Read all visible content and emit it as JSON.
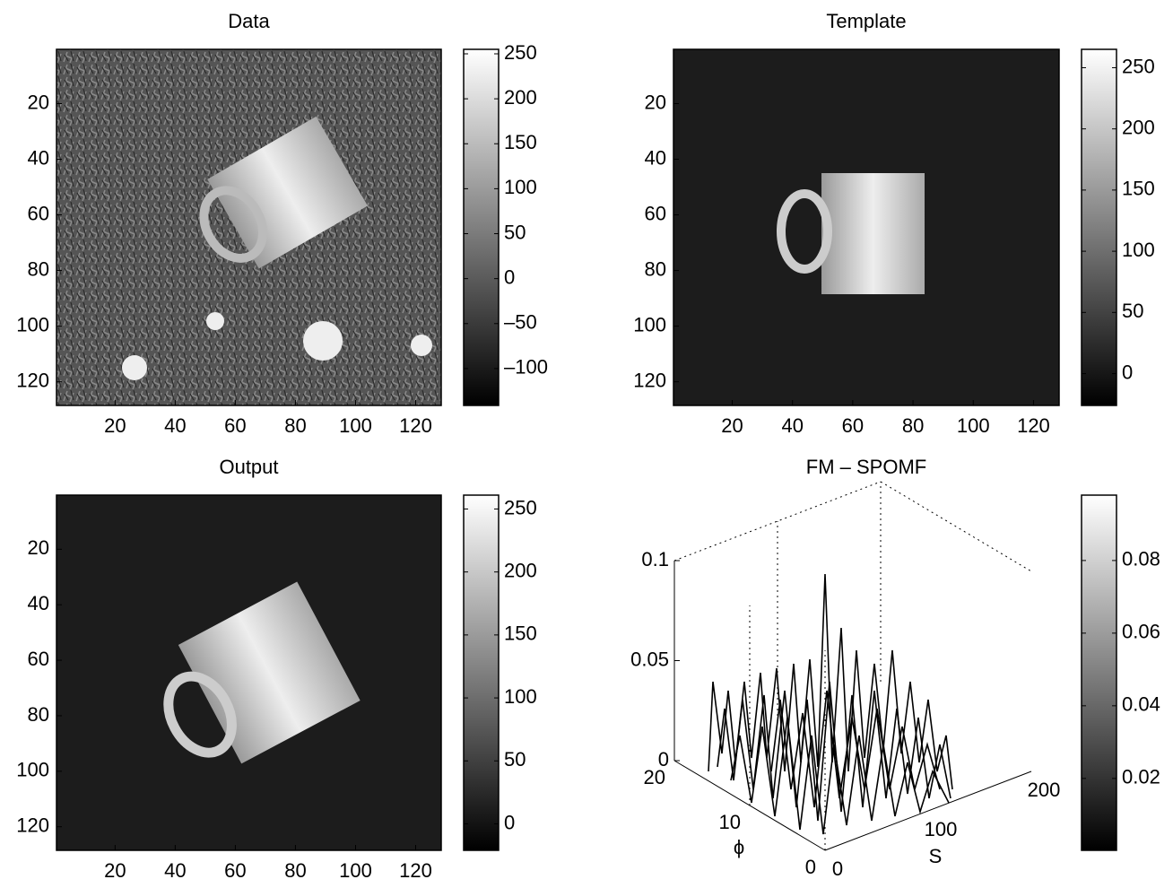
{
  "chart_data": [
    {
      "type": "image",
      "title": "Data",
      "xlim": [
        0.5,
        128.5
      ],
      "ylim": [
        0.5,
        128.5
      ],
      "xticks": [
        20,
        40,
        60,
        80,
        100,
        120
      ],
      "yticks": [
        20,
        40,
        60,
        80,
        100,
        120
      ],
      "colormap": "gray",
      "colorbar": {
        "clim": [
          -141,
          255
        ],
        "ticks": [
          250,
          200,
          150,
          100,
          50,
          0,
          {
            "value": -50,
            "label": "–50"
          },
          {
            "value": -100,
            "label": "–100"
          }
        ]
      }
    },
    {
      "type": "image",
      "title": "Template",
      "xlim": [
        0.5,
        128.5
      ],
      "ylim": [
        0.5,
        128.5
      ],
      "xticks": [
        20,
        40,
        60,
        80,
        100,
        120
      ],
      "yticks": [
        20,
        40,
        60,
        80,
        100,
        120
      ],
      "colormap": "gray",
      "colorbar": {
        "clim": [
          -26,
          265
        ],
        "ticks": [
          250,
          200,
          150,
          100,
          50,
          0
        ]
      }
    },
    {
      "type": "image",
      "title": "Output",
      "xlim": [
        0.5,
        128.5
      ],
      "ylim": [
        0.5,
        128.5
      ],
      "xticks": [
        20,
        40,
        60,
        80,
        100,
        120
      ],
      "yticks": [
        20,
        40,
        60,
        80,
        100,
        120
      ],
      "colormap": "gray",
      "colorbar": {
        "clim": [
          -21,
          261
        ],
        "ticks": [
          250,
          200,
          150,
          100,
          50,
          0
        ]
      }
    },
    {
      "type": "surface",
      "title": "FM – SPOMF",
      "xlabel": "S",
      "ylabel": "ϕ",
      "xlim": [
        0,
        200
      ],
      "ylim": [
        0,
        20
      ],
      "zlim": [
        0,
        0.1
      ],
      "xticks": [
        0,
        100,
        200
      ],
      "yticks": [
        0,
        10,
        20
      ],
      "zticks": [
        0,
        0.05,
        0.1
      ],
      "colormap": "gray",
      "colorbar": {
        "clim": [
          0.0002,
          0.098
        ],
        "ticks": [
          0.02,
          0.04,
          0.06,
          0.08
        ]
      }
    }
  ]
}
